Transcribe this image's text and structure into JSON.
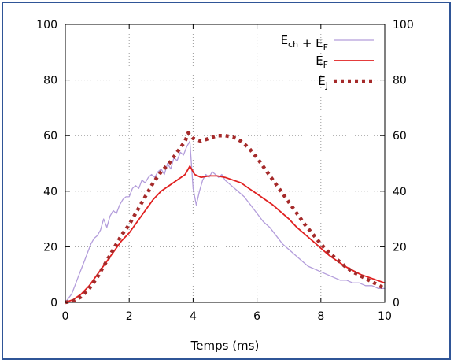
{
  "chart_data": {
    "type": "line",
    "title": "",
    "xlabel": "Temps (ms)",
    "ylabel": "",
    "xlim": [
      0,
      10
    ],
    "ylim": [
      0,
      100
    ],
    "x_ticks": [
      "0",
      "2",
      "4",
      "6",
      "8",
      "10"
    ],
    "y_ticks": [
      "0",
      "20",
      "40",
      "60",
      "80",
      "100"
    ],
    "y2_ticks": [
      "0",
      "20",
      "40",
      "60",
      "80",
      "100"
    ],
    "grid": true,
    "legend_position": "top-right",
    "series": [
      {
        "name": "Ech + EF",
        "legend_parts": [
          [
            "E",
            "ch"
          ],
          [
            " + E",
            "F"
          ]
        ],
        "color": "#b39ddb",
        "style": "solid",
        "x": [
          0,
          0.1,
          0.2,
          0.3,
          0.4,
          0.5,
          0.6,
          0.7,
          0.8,
          0.9,
          1.0,
          1.1,
          1.2,
          1.3,
          1.4,
          1.5,
          1.6,
          1.7,
          1.8,
          1.9,
          2.0,
          2.1,
          2.2,
          2.3,
          2.4,
          2.5,
          2.6,
          2.7,
          2.8,
          2.9,
          3.0,
          3.1,
          3.2,
          3.3,
          3.4,
          3.5,
          3.6,
          3.7,
          3.8,
          3.9,
          4.0,
          4.1,
          4.2,
          4.3,
          4.4,
          4.5,
          4.6,
          4.7,
          4.8,
          4.9,
          5.0,
          5.2,
          5.4,
          5.6,
          5.8,
          6.0,
          6.2,
          6.4,
          6.6,
          6.8,
          7.0,
          7.2,
          7.4,
          7.6,
          7.8,
          8.0,
          8.2,
          8.4,
          8.6,
          8.8,
          9.0,
          9.2,
          9.4,
          9.6,
          9.8,
          10.0
        ],
        "values": [
          0,
          1.5,
          3,
          6,
          9,
          12,
          15,
          18,
          21,
          23,
          24,
          26,
          30,
          27,
          31,
          33,
          32,
          35,
          37,
          38,
          38,
          41,
          42,
          41,
          44,
          43,
          45,
          46,
          45,
          47,
          48,
          46,
          50,
          48,
          52,
          51,
          54,
          53,
          56,
          58,
          41,
          35,
          40,
          44,
          46,
          45,
          47,
          46,
          45,
          46,
          44,
          42,
          40,
          38,
          35,
          32,
          29,
          27,
          24,
          21,
          19,
          17,
          15,
          13,
          12,
          11,
          10,
          9,
          8,
          8,
          7,
          7,
          6,
          6,
          5,
          5
        ]
      },
      {
        "name": "EF",
        "legend_parts": [
          [
            "E",
            "F"
          ]
        ],
        "color": "#e02020",
        "style": "solid",
        "x": [
          0,
          0.25,
          0.5,
          0.75,
          1.0,
          1.25,
          1.5,
          1.75,
          2.0,
          2.25,
          2.5,
          2.75,
          3.0,
          3.25,
          3.5,
          3.75,
          3.9,
          4.05,
          4.25,
          4.5,
          4.75,
          5.0,
          5.25,
          5.5,
          5.75,
          6.0,
          6.25,
          6.5,
          6.75,
          7.0,
          7.25,
          7.5,
          7.75,
          8.0,
          8.25,
          8.5,
          8.75,
          9.0,
          9.25,
          9.5,
          9.75,
          10.0
        ],
        "values": [
          0,
          1,
          3,
          6,
          10,
          14,
          18,
          22,
          25,
          29,
          33,
          37,
          40,
          42,
          44,
          46,
          49,
          46,
          45,
          45.5,
          45.5,
          45,
          44,
          43,
          41,
          39,
          37,
          35,
          32.5,
          30,
          27,
          24.5,
          22,
          19.5,
          17,
          15,
          13,
          11.5,
          10,
          9,
          8,
          7
        ]
      },
      {
        "name": "EJ",
        "legend_parts": [
          [
            "E",
            "J"
          ]
        ],
        "color": "#a52a2a",
        "style": "dotted",
        "x": [
          0,
          0.25,
          0.5,
          0.75,
          1.0,
          1.25,
          1.5,
          1.75,
          2.0,
          2.25,
          2.5,
          2.75,
          3.0,
          3.25,
          3.5,
          3.75,
          3.85,
          4.0,
          4.25,
          4.5,
          4.75,
          5.0,
          5.25,
          5.5,
          5.75,
          6.0,
          6.25,
          6.5,
          6.75,
          7.0,
          7.25,
          7.5,
          7.75,
          8.0,
          8.25,
          8.5,
          8.75,
          9.0,
          9.25,
          9.5,
          9.75,
          10.0
        ],
        "values": [
          0,
          0.5,
          2,
          5,
          9,
          14,
          19,
          24,
          28,
          33,
          38,
          43,
          47,
          50,
          54,
          58,
          61,
          59,
          58,
          59,
          60,
          60,
          59.5,
          58,
          55.5,
          52,
          48,
          44,
          40,
          36,
          32,
          28,
          24.5,
          21,
          18,
          15.5,
          13,
          11,
          9.5,
          8,
          6.5,
          5
        ]
      }
    ]
  }
}
